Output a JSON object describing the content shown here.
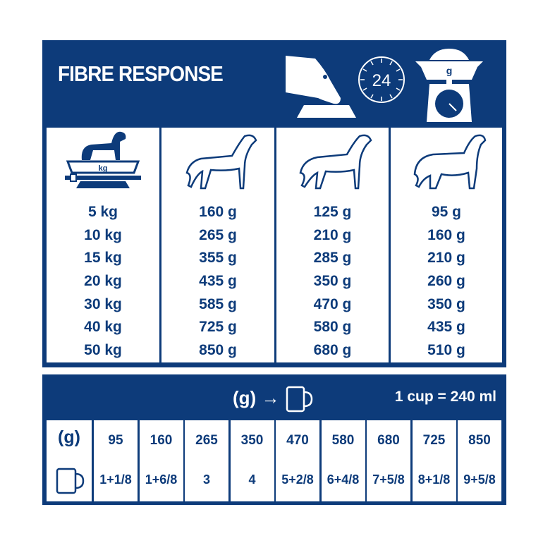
{
  "title": "FIBRE RESPONSE",
  "header_icons": [
    "dog-eating-from-bowl-icon",
    "clock-24-icon",
    "food-scale-g-icon"
  ],
  "header_scale_label": "g",
  "header_clock_label": "24",
  "columns": [
    {
      "icon": "dog-on-scale-icon",
      "scale_label": "kg",
      "values": [
        "5 kg",
        "10 kg",
        "15 kg",
        "20 kg",
        "30 kg",
        "40 kg",
        "50 kg"
      ]
    },
    {
      "icon": "thin-dog-icon",
      "values": [
        "160 g",
        "265 g",
        "355 g",
        "435 g",
        "585 g",
        "725 g",
        "850 g"
      ]
    },
    {
      "icon": "normal-dog-icon",
      "values": [
        "125 g",
        "210 g",
        "285 g",
        "350 g",
        "470 g",
        "580 g",
        "680 g"
      ]
    },
    {
      "icon": "overweight-dog-icon",
      "values": [
        "95 g",
        "160 g",
        "210 g",
        "260 g",
        "350 g",
        "435 g",
        "510 g"
      ]
    }
  ],
  "conversion": {
    "header_label": "(g)",
    "arrow": "→",
    "cup_note": "1 cup = 240 ml",
    "row_label": "(g)",
    "grams": [
      "95",
      "160",
      "265",
      "350",
      "470",
      "580",
      "680",
      "725",
      "850"
    ],
    "cups": [
      "1+1/8",
      "1+6/8",
      "3",
      "4",
      "5+2/8",
      "6+4/8",
      "7+5/8",
      "8+1/8",
      "9+5/8"
    ]
  },
  "colors": {
    "brand_blue": "#0d3b7a",
    "background": "#ffffff"
  }
}
